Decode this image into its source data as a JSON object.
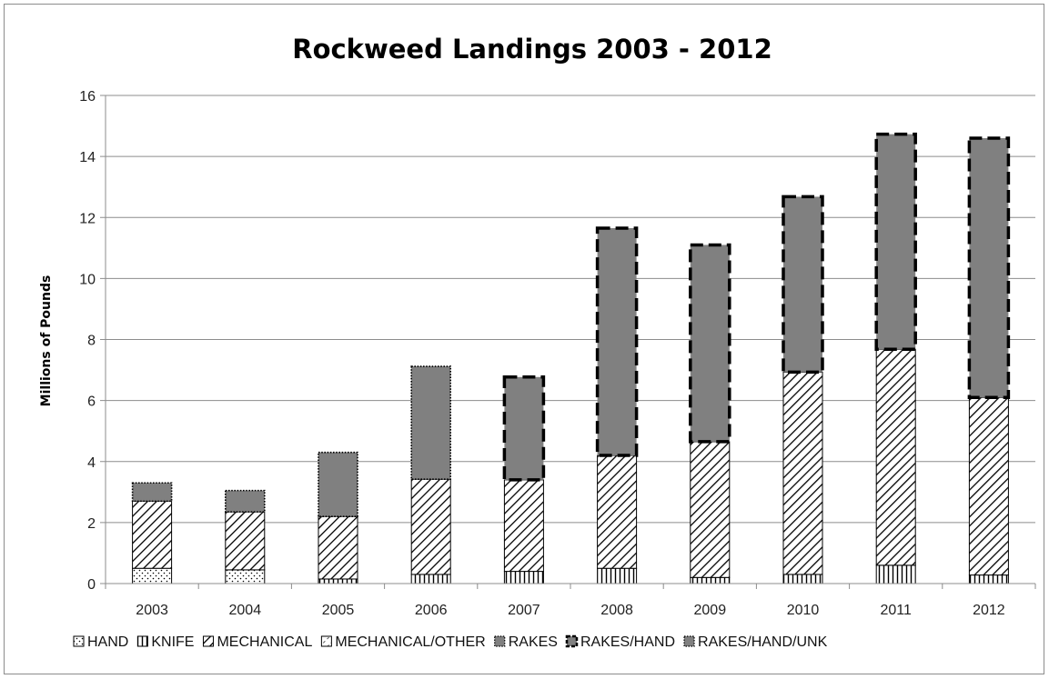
{
  "chart_data": {
    "type": "bar",
    "stacked": true,
    "title": "Rockweed Landings 2003 - 2012",
    "xlabel": "",
    "ylabel": "Millions of Pounds",
    "ylim": [
      0,
      16
    ],
    "yticks": [
      0,
      2,
      4,
      6,
      8,
      10,
      12,
      14,
      16
    ],
    "grid": true,
    "legend_position": "bottom",
    "categories": [
      "2003",
      "2004",
      "2005",
      "2006",
      "2007",
      "2008",
      "2009",
      "2010",
      "2011",
      "2012"
    ],
    "series": [
      {
        "name": "HAND",
        "pattern": "dots",
        "values": [
          0.5,
          0.45,
          0,
          0,
          0,
          0,
          0,
          0,
          0,
          0
        ]
      },
      {
        "name": "KNIFE",
        "pattern": "vertical-lines",
        "values": [
          0,
          0,
          0.15,
          0.3,
          0.4,
          0.5,
          0.2,
          0.3,
          0.6,
          0.28
        ]
      },
      {
        "name": "MECHANICAL",
        "pattern": "diagonal-lines",
        "values": [
          2.2,
          1.9,
          2.05,
          3.12,
          3.0,
          3.7,
          4.45,
          6.63,
          7.08,
          5.82
        ]
      },
      {
        "name": "MECHANICAL/OTHER",
        "pattern": "wide-diagonal-lines",
        "values": [
          0,
          0,
          0,
          0,
          0,
          0,
          0,
          0,
          0,
          0
        ]
      },
      {
        "name": "RAKES",
        "color": "#808080",
        "border": "dotted",
        "values": [
          0.6,
          0.7,
          2.1,
          3.7,
          0,
          0,
          0,
          0,
          0,
          0
        ]
      },
      {
        "name": "RAKES/HAND",
        "color": "#808080",
        "border": "dashed",
        "values": [
          0,
          0,
          0,
          0,
          3.37,
          7.45,
          6.45,
          5.75,
          7.05,
          8.5
        ]
      },
      {
        "name": "RAKES/HAND/UNK",
        "color": "#808080",
        "border": "dotted",
        "values": [
          0,
          0,
          0,
          0,
          0,
          0,
          0,
          0,
          0,
          0
        ]
      }
    ]
  }
}
